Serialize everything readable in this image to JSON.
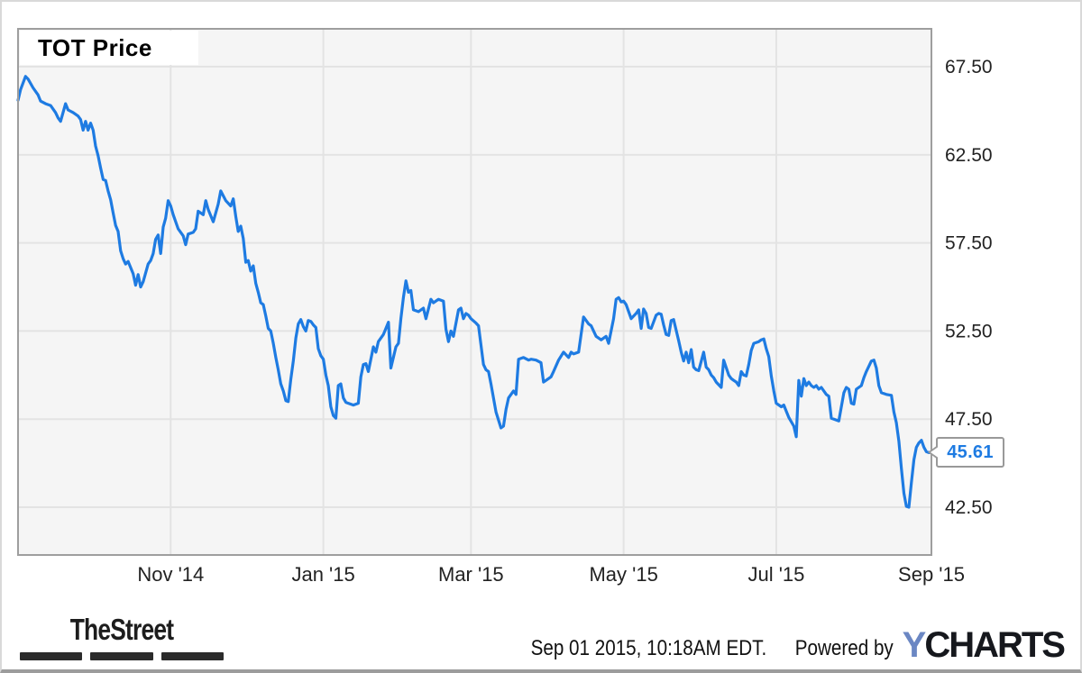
{
  "chart": {
    "title": "TOT Price",
    "last_price_label": "45.61",
    "line_color": "#1e7be2",
    "plot_bg": "#f5f5f5",
    "grid_color": "#e3e3e3",
    "border_color": "#9e9e9e",
    "chart_data": {
      "type": "line",
      "title": "TOT Price",
      "series_name": "TOT Price",
      "start_date": "2014-09-01",
      "end_date": "2015-09-01",
      "x_unit": "days_since_start",
      "xlim_days": [
        0,
        365
      ],
      "ylim": [
        39.79,
        69.65
      ],
      "grid": true,
      "legend": false,
      "last_value": 45.61,
      "yticks": [
        {
          "value": 67.5,
          "label": "67.50"
        },
        {
          "value": 62.5,
          "label": "62.50"
        },
        {
          "value": 57.5,
          "label": "57.50"
        },
        {
          "value": 52.5,
          "label": "52.50"
        },
        {
          "value": 47.5,
          "label": "47.50"
        },
        {
          "value": 42.5,
          "label": "42.50"
        }
      ],
      "xticks": [
        {
          "day": 61,
          "label": "Nov '14"
        },
        {
          "day": 122,
          "label": "Jan '15"
        },
        {
          "day": 181,
          "label": "Mar '15"
        },
        {
          "day": 242,
          "label": "May '15"
        },
        {
          "day": 303,
          "label": "Jul '15"
        },
        {
          "day": 365,
          "label": "Sep '15"
        }
      ],
      "points": [
        [
          0,
          65.6
        ],
        [
          1,
          66.2
        ],
        [
          3,
          66.95
        ],
        [
          4,
          66.8
        ],
        [
          6,
          66.3
        ],
        [
          8,
          65.9
        ],
        [
          9,
          65.55
        ],
        [
          11,
          65.4
        ],
        [
          13,
          65.3
        ],
        [
          15,
          64.9
        ],
        [
          16,
          64.6
        ],
        [
          17,
          64.4
        ],
        [
          19,
          65.4
        ],
        [
          20,
          65.05
        ],
        [
          22,
          64.9
        ],
        [
          24,
          64.7
        ],
        [
          25,
          64.5
        ],
        [
          26,
          63.9
        ],
        [
          27,
          64.4
        ],
        [
          28,
          63.9
        ],
        [
          29,
          64.3
        ],
        [
          30,
          63.9
        ],
        [
          31,
          63.0
        ],
        [
          32,
          62.45
        ],
        [
          33,
          61.75
        ],
        [
          34,
          61.1
        ],
        [
          35,
          61.05
        ],
        [
          36,
          60.45
        ],
        [
          37,
          59.95
        ],
        [
          38,
          59.2
        ],
        [
          39,
          58.5
        ],
        [
          40,
          58.15
        ],
        [
          41,
          57.05
        ],
        [
          42,
          56.6
        ],
        [
          43,
          56.3
        ],
        [
          44,
          56.45
        ],
        [
          45,
          56.1
        ],
        [
          46,
          55.75
        ],
        [
          47,
          55.1
        ],
        [
          48,
          55.7
        ],
        [
          49,
          55.0
        ],
        [
          50,
          55.3
        ],
        [
          52,
          56.3
        ],
        [
          53,
          56.5
        ],
        [
          54,
          56.9
        ],
        [
          55,
          57.7
        ],
        [
          56,
          57.95
        ],
        [
          57,
          56.9
        ],
        [
          58,
          58.4
        ],
        [
          59,
          58.9
        ],
        [
          60,
          59.9
        ],
        [
          61,
          59.6
        ],
        [
          62,
          59.1
        ],
        [
          64,
          58.3
        ],
        [
          66,
          57.9
        ],
        [
          67,
          57.4
        ],
        [
          68,
          58.0
        ],
        [
          70,
          58.1
        ],
        [
          71,
          58.3
        ],
        [
          72,
          59.3
        ],
        [
          74,
          59.1
        ],
        [
          75,
          59.9
        ],
        [
          76,
          59.4
        ],
        [
          78,
          58.7
        ],
        [
          80,
          59.7
        ],
        [
          81,
          60.45
        ],
        [
          83,
          59.9
        ],
        [
          85,
          59.6
        ],
        [
          86,
          60.0
        ],
        [
          87,
          59.0
        ],
        [
          88,
          58.15
        ],
        [
          89,
          58.45
        ],
        [
          90,
          57.75
        ],
        [
          91,
          56.4
        ],
        [
          92,
          56.5
        ],
        [
          93,
          55.9
        ],
        [
          94,
          56.2
        ],
        [
          95,
          55.2
        ],
        [
          96,
          54.7
        ],
        [
          97,
          54.1
        ],
        [
          98,
          54.0
        ],
        [
          99,
          53.35
        ],
        [
          100,
          52.65
        ],
        [
          101,
          52.5
        ],
        [
          102,
          51.8
        ],
        [
          103,
          51.0
        ],
        [
          104,
          50.3
        ],
        [
          105,
          49.5
        ],
        [
          106,
          49.1
        ],
        [
          107,
          48.55
        ],
        [
          108,
          48.5
        ],
        [
          109,
          49.75
        ],
        [
          110,
          50.8
        ],
        [
          111,
          52.1
        ],
        [
          112,
          52.9
        ],
        [
          113,
          53.15
        ],
        [
          114,
          52.75
        ],
        [
          115,
          52.5
        ],
        [
          116,
          53.1
        ],
        [
          117,
          53.05
        ],
        [
          118,
          52.85
        ],
        [
          119,
          52.7
        ],
        [
          120,
          51.5
        ],
        [
          121,
          51.1
        ],
        [
          122,
          50.9
        ],
        [
          123,
          50.0
        ],
        [
          124,
          49.4
        ],
        [
          125,
          48.2
        ],
        [
          126,
          47.7
        ],
        [
          127,
          47.55
        ],
        [
          128,
          49.4
        ],
        [
          129,
          49.5
        ],
        [
          130,
          48.7
        ],
        [
          131,
          48.45
        ],
        [
          132,
          48.4
        ],
        [
          134,
          48.3
        ],
        [
          136,
          48.4
        ],
        [
          137,
          49.9
        ],
        [
          138,
          50.6
        ],
        [
          139,
          50.65
        ],
        [
          140,
          50.2
        ],
        [
          142,
          51.6
        ],
        [
          143,
          51.3
        ],
        [
          144,
          51.9
        ],
        [
          146,
          52.3
        ],
        [
          148,
          53.0
        ],
        [
          149,
          50.4
        ],
        [
          151,
          51.6
        ],
        [
          152,
          51.8
        ],
        [
          153,
          53.2
        ],
        [
          154,
          54.4
        ],
        [
          155,
          55.35
        ],
        [
          156,
          54.7
        ],
        [
          157,
          54.8
        ],
        [
          158,
          53.7
        ],
        [
          160,
          53.6
        ],
        [
          162,
          53.8
        ],
        [
          163,
          53.2
        ],
        [
          165,
          54.3
        ],
        [
          166,
          54.1
        ],
        [
          168,
          54.3
        ],
        [
          170,
          54.2
        ],
        [
          171,
          52.6
        ],
        [
          172,
          51.9
        ],
        [
          173,
          52.5
        ],
        [
          174,
          52.2
        ],
        [
          176,
          53.7
        ],
        [
          177,
          53.8
        ],
        [
          178,
          53.2
        ],
        [
          179,
          53.5
        ],
        [
          180,
          53.4
        ],
        [
          181,
          53.2
        ],
        [
          183,
          52.95
        ],
        [
          184,
          52.8
        ],
        [
          186,
          50.6
        ],
        [
          187,
          50.3
        ],
        [
          188,
          50.2
        ],
        [
          189,
          49.5
        ],
        [
          191,
          47.9
        ],
        [
          193,
          47.0
        ],
        [
          194,
          47.1
        ],
        [
          195,
          48.05
        ],
        [
          196,
          48.7
        ],
        [
          198,
          49.1
        ],
        [
          199,
          48.9
        ],
        [
          200,
          50.9
        ],
        [
          202,
          51.0
        ],
        [
          204,
          50.85
        ],
        [
          205,
          50.9
        ],
        [
          207,
          50.85
        ],
        [
          209,
          50.7
        ],
        [
          210,
          49.6
        ],
        [
          211,
          49.7
        ],
        [
          213,
          49.9
        ],
        [
          214,
          50.2
        ],
        [
          216,
          50.85
        ],
        [
          218,
          51.3
        ],
        [
          220,
          51.0
        ],
        [
          221,
          51.3
        ],
        [
          222,
          51.2
        ],
        [
          224,
          51.3
        ],
        [
          226,
          53.3
        ],
        [
          228,
          52.9
        ],
        [
          229,
          52.8
        ],
        [
          231,
          52.2
        ],
        [
          233,
          52.0
        ],
        [
          235,
          52.2
        ],
        [
          236,
          51.8
        ],
        [
          238,
          53.2
        ],
        [
          239,
          54.3
        ],
        [
          240,
          54.4
        ],
        [
          241,
          54.15
        ],
        [
          242,
          54.2
        ],
        [
          243,
          54.0
        ],
        [
          245,
          53.2
        ],
        [
          247,
          53.5
        ],
        [
          248,
          53.7
        ],
        [
          249,
          52.65
        ],
        [
          250,
          53.75
        ],
        [
          251,
          53.5
        ],
        [
          252,
          52.7
        ],
        [
          253,
          52.65
        ],
        [
          255,
          53.4
        ],
        [
          256,
          53.5
        ],
        [
          257,
          53.45
        ],
        [
          258,
          52.85
        ],
        [
          259,
          52.3
        ],
        [
          260,
          52.25
        ],
        [
          261,
          53.1
        ],
        [
          262,
          53.15
        ],
        [
          264,
          51.95
        ],
        [
          265,
          51.3
        ],
        [
          266,
          50.8
        ],
        [
          267,
          51.3
        ],
        [
          268,
          50.7
        ],
        [
          269,
          51.45
        ],
        [
          270,
          50.45
        ],
        [
          271,
          50.3
        ],
        [
          272,
          50.25
        ],
        [
          274,
          51.3
        ],
        [
          275,
          50.45
        ],
        [
          276,
          50.3
        ],
        [
          277,
          50.0
        ],
        [
          278,
          49.85
        ],
        [
          279,
          49.6
        ],
        [
          281,
          49.3
        ],
        [
          282,
          50.85
        ],
        [
          284,
          50.0
        ],
        [
          285,
          49.8
        ],
        [
          286,
          49.7
        ],
        [
          287,
          49.6
        ],
        [
          288,
          49.4
        ],
        [
          289,
          50.2
        ],
        [
          290,
          50.0
        ],
        [
          291,
          49.95
        ],
        [
          292,
          50.6
        ],
        [
          293,
          51.4
        ],
        [
          294,
          51.8
        ],
        [
          296,
          51.9
        ],
        [
          297,
          52.0
        ],
        [
          298,
          52.05
        ],
        [
          299,
          51.5
        ],
        [
          300,
          51.05
        ],
        [
          301,
          49.95
        ],
        [
          302,
          49.1
        ],
        [
          303,
          48.4
        ],
        [
          305,
          48.2
        ],
        [
          306,
          48.3
        ],
        [
          307,
          47.95
        ],
        [
          308,
          47.6
        ],
        [
          310,
          47.1
        ],
        [
          311,
          46.5
        ],
        [
          312,
          49.7
        ],
        [
          313,
          48.8
        ],
        [
          314,
          49.8
        ],
        [
          315,
          49.4
        ],
        [
          316,
          49.6
        ],
        [
          317,
          49.4
        ],
        [
          318,
          49.3
        ],
        [
          319,
          49.4
        ],
        [
          320,
          49.2
        ],
        [
          321,
          49.3
        ],
        [
          323,
          48.9
        ],
        [
          324,
          48.8
        ],
        [
          325,
          47.55
        ],
        [
          326,
          47.5
        ],
        [
          328,
          47.4
        ],
        [
          330,
          49.0
        ],
        [
          331,
          49.3
        ],
        [
          332,
          49.2
        ],
        [
          333,
          48.4
        ],
        [
          334,
          48.35
        ],
        [
          335,
          49.2
        ],
        [
          337,
          49.4
        ],
        [
          338,
          49.85
        ],
        [
          339,
          50.2
        ],
        [
          341,
          50.8
        ],
        [
          342,
          50.85
        ],
        [
          343,
          50.4
        ],
        [
          344,
          49.4
        ],
        [
          345,
          49.0
        ],
        [
          347,
          48.9
        ],
        [
          349,
          48.85
        ],
        [
          350,
          47.9
        ],
        [
          351,
          47.3
        ],
        [
          352,
          46.25
        ],
        [
          353,
          44.7
        ],
        [
          354,
          43.3
        ],
        [
          355,
          42.55
        ],
        [
          356,
          42.5
        ],
        [
          357,
          43.9
        ],
        [
          358,
          45.2
        ],
        [
          359,
          45.9
        ],
        [
          360,
          46.15
        ],
        [
          361,
          46.3
        ],
        [
          362,
          45.9
        ],
        [
          363,
          45.65
        ],
        [
          364,
          45.6
        ],
        [
          365,
          45.61
        ]
      ]
    }
  },
  "footer": {
    "thestreet_logo_text": "TheStreet",
    "timestamp": "Sep 01 2015, 10:18AM EDT.",
    "powered_by": "Powered by",
    "ycharts_logo_y": "Y",
    "ycharts_logo_rest": "CHARTS",
    "ycharts_y_color": "#6b87c3"
  }
}
